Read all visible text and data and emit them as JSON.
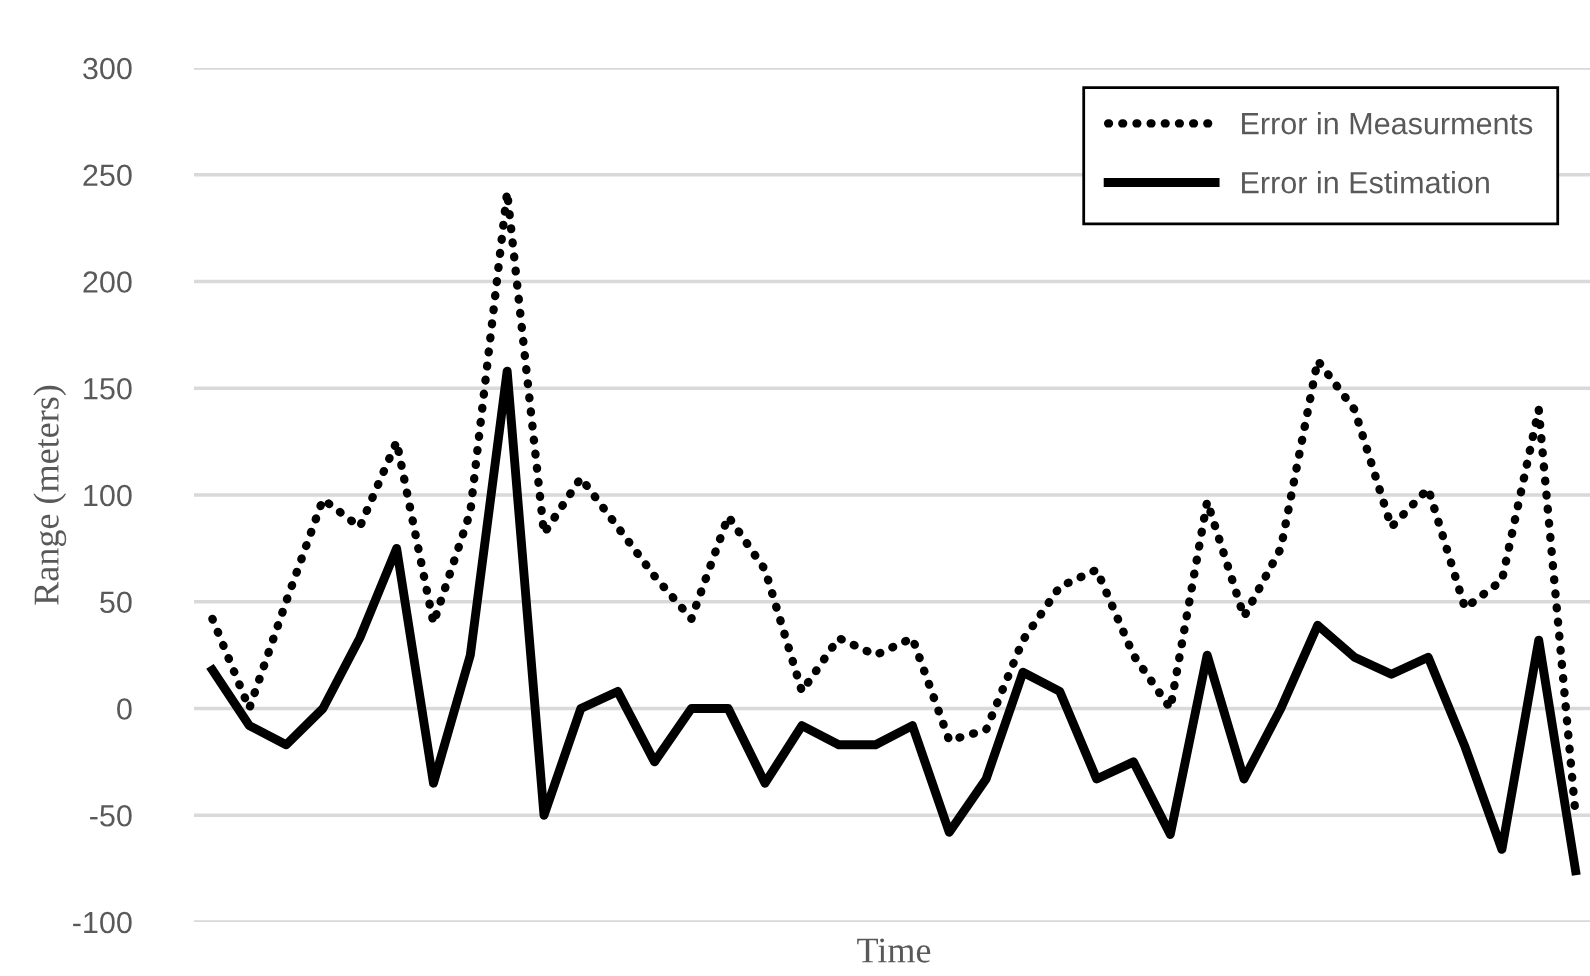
{
  "chart_data": {
    "type": "line",
    "xlabel": "Time",
    "ylabel": "Range (meters)",
    "categories": [
      null,
      null,
      null,
      null,
      null,
      null,
      null,
      null,
      null,
      null,
      null,
      null,
      null,
      null,
      null,
      null,
      null,
      null,
      null,
      null,
      null,
      null,
      null,
      null,
      null,
      null,
      null,
      null,
      null,
      null,
      null,
      null,
      null,
      null,
      null,
      null,
      null,
      null
    ],
    "series": [
      {
        "name": "Error in Measurments",
        "color": "#000000",
        "line_style": "dotted",
        "values": [
          42,
          0,
          50,
          98,
          85,
          125,
          40,
          92,
          242,
          82,
          108,
          85,
          62,
          42,
          90,
          65,
          8,
          33,
          25,
          33,
          -15,
          -10,
          32,
          57,
          65,
          25,
          0,
          97,
          43,
          75,
          163,
          140,
          85,
          103,
          47,
          60,
          140,
          -50
        ]
      },
      {
        "name": "Error in Estimation",
        "color": "#000000",
        "line_style": "solid",
        "values": [
          18,
          -8,
          -17,
          0,
          33,
          75,
          -35,
          25,
          158,
          -50,
          0,
          8,
          -25,
          0,
          0,
          -35,
          -8,
          -17,
          -17,
          -8,
          -58,
          -33,
          17,
          8,
          -33,
          -25,
          -59,
          25,
          -33,
          0,
          39,
          24,
          16,
          24,
          -18,
          -66,
          32,
          -76
        ]
      }
    ],
    "ylim": [
      -100,
      300
    ],
    "yticks": [
      -100,
      -50,
      0,
      50,
      100,
      150,
      200,
      250,
      300
    ],
    "grid": "y",
    "legend": "top right",
    "marker": "none"
  }
}
